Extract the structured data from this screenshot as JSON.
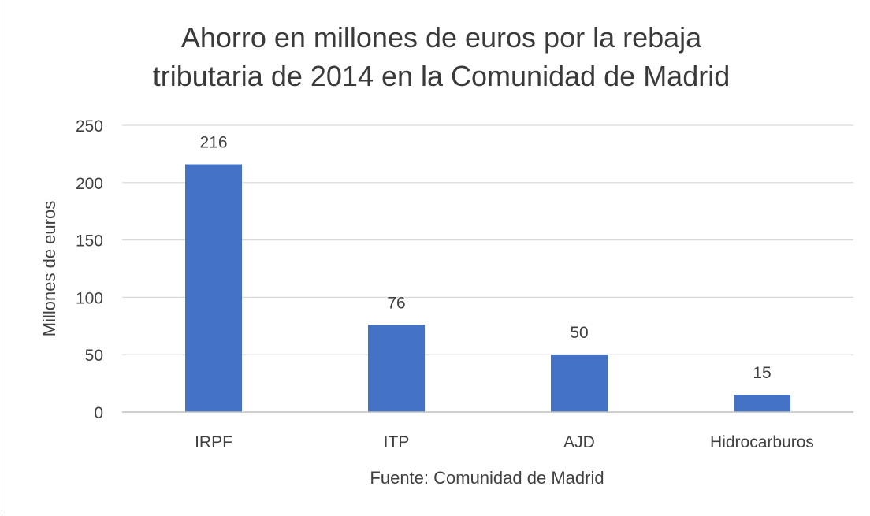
{
  "chart_data": {
    "type": "bar",
    "title_lines": [
      "Ahorro en millones de euros por la rebaja",
      "tributaria de 2014 en la Comunidad de Madrid"
    ],
    "xlabel": "Fuente: Comunidad de Madrid",
    "ylabel": "Millones de euros",
    "categories": [
      "IRPF",
      "ITP",
      "AJD",
      "Hidrocarburos"
    ],
    "values": [
      216,
      76,
      50,
      15
    ],
    "data_labels": [
      "216",
      "76",
      "50",
      "15"
    ],
    "ylim": [
      0,
      250
    ],
    "yticks": [
      0,
      50,
      100,
      150,
      200,
      250
    ],
    "grid": true,
    "legend": "none",
    "colors": {
      "bar": "#4472c4",
      "grid": "#d9d9d9",
      "axis": "#bfbfbf",
      "text": "#404040",
      "title": "#3a3a3a"
    }
  }
}
